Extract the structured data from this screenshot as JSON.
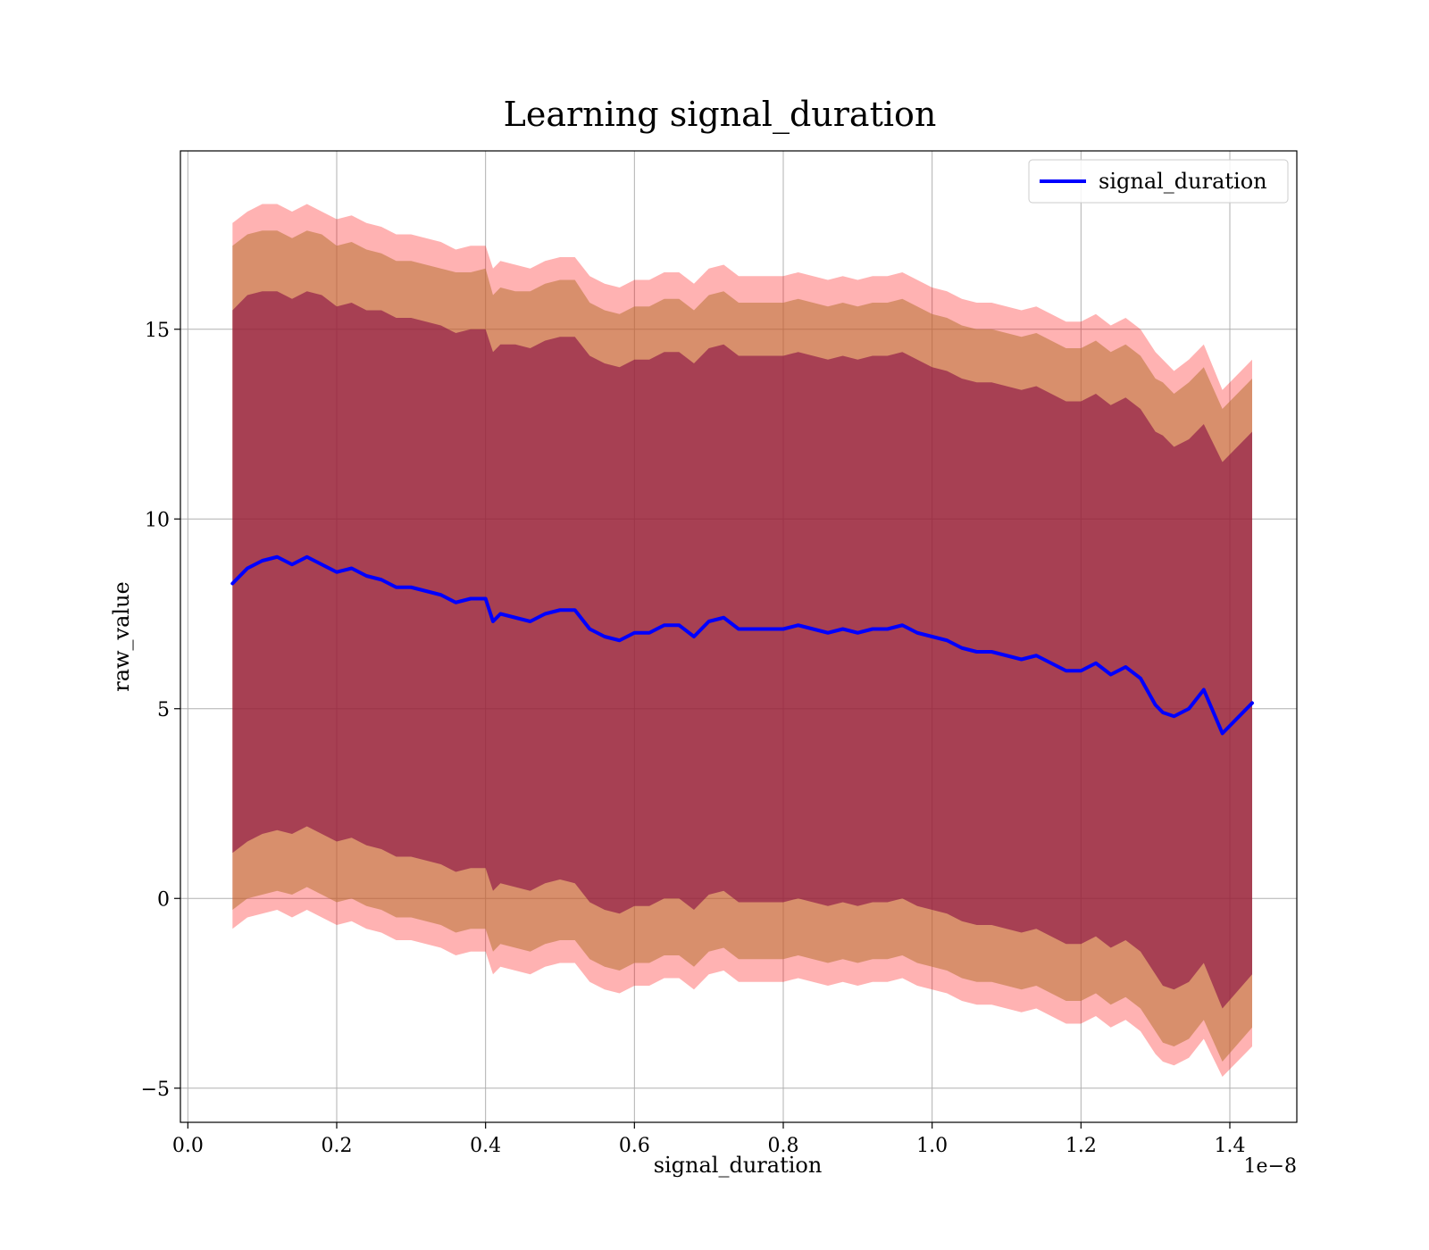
{
  "chart_data": {
    "type": "line",
    "title": "Learning signal_duration",
    "xlabel": "signal_duration",
    "ylabel": "raw_value",
    "x_offset_label": "1e−8",
    "xlim": [
      -0.01,
      1.49
    ],
    "ylim": [
      -5.9,
      19.7
    ],
    "x_ticks": [
      {
        "value": 0.0,
        "label": "0.0"
      },
      {
        "value": 0.2,
        "label": "0.2"
      },
      {
        "value": 0.4,
        "label": "0.4"
      },
      {
        "value": 0.6,
        "label": "0.6"
      },
      {
        "value": 0.8,
        "label": "0.8"
      },
      {
        "value": 1.0,
        "label": "1.0"
      },
      {
        "value": 1.2,
        "label": "1.2"
      },
      {
        "value": 1.4,
        "label": "1.4"
      }
    ],
    "y_ticks": [
      {
        "value": -5,
        "label": "−5"
      },
      {
        "value": 0,
        "label": "0"
      },
      {
        "value": 5,
        "label": "5"
      },
      {
        "value": 10,
        "label": "10"
      },
      {
        "value": 15,
        "label": "15"
      }
    ],
    "grid": true,
    "legend_position": "top-right",
    "colors": {
      "line": "#0000ff",
      "band_outer": "#ff0000",
      "band_mid": "#b87333",
      "band_inner": "#800040"
    },
    "series": [
      {
        "name": "signal_duration",
        "x": [
          0.06,
          0.08,
          0.1,
          0.12,
          0.14,
          0.16,
          0.18,
          0.2,
          0.22,
          0.24,
          0.26,
          0.28,
          0.3,
          0.32,
          0.34,
          0.36,
          0.38,
          0.4,
          0.41,
          0.42,
          0.44,
          0.46,
          0.48,
          0.5,
          0.52,
          0.54,
          0.56,
          0.58,
          0.6,
          0.62,
          0.64,
          0.66,
          0.68,
          0.7,
          0.72,
          0.74,
          0.76,
          0.78,
          0.8,
          0.82,
          0.84,
          0.86,
          0.88,
          0.9,
          0.92,
          0.94,
          0.96,
          0.98,
          1.0,
          1.02,
          1.04,
          1.06,
          1.08,
          1.1,
          1.12,
          1.14,
          1.16,
          1.18,
          1.2,
          1.22,
          1.24,
          1.26,
          1.28,
          1.3,
          1.31,
          1.325,
          1.345,
          1.365,
          1.39,
          1.43
        ],
        "y": [
          8.3,
          8.7,
          8.9,
          9.0,
          8.8,
          9.0,
          8.8,
          8.6,
          8.7,
          8.5,
          8.4,
          8.2,
          8.2,
          8.1,
          8.0,
          7.8,
          7.9,
          7.9,
          7.3,
          7.5,
          7.4,
          7.3,
          7.5,
          7.6,
          7.6,
          7.1,
          6.9,
          6.8,
          7.0,
          7.0,
          7.2,
          7.2,
          6.9,
          7.3,
          7.4,
          7.1,
          7.1,
          7.1,
          7.1,
          7.2,
          7.1,
          7.0,
          7.1,
          7.0,
          7.1,
          7.1,
          7.2,
          7.0,
          6.9,
          6.8,
          6.6,
          6.5,
          6.5,
          6.4,
          6.3,
          6.4,
          6.2,
          6.0,
          6.0,
          6.2,
          5.9,
          6.1,
          5.8,
          5.1,
          4.9,
          4.8,
          5.0,
          5.5,
          4.35,
          5.15
        ]
      }
    ],
    "bands": [
      {
        "sigma": 1,
        "upper": [
          15.5,
          15.9,
          16.0,
          16.0,
          15.8,
          16.0,
          15.9,
          15.6,
          15.7,
          15.5,
          15.5,
          15.3,
          15.3,
          15.2,
          15.1,
          14.9,
          15.0,
          15.0,
          14.4,
          14.6,
          14.6,
          14.5,
          14.7,
          14.8,
          14.8,
          14.3,
          14.1,
          14.0,
          14.2,
          14.2,
          14.4,
          14.4,
          14.1,
          14.5,
          14.6,
          14.3,
          14.3,
          14.3,
          14.3,
          14.4,
          14.3,
          14.2,
          14.3,
          14.2,
          14.3,
          14.3,
          14.4,
          14.2,
          14.0,
          13.9,
          13.7,
          13.6,
          13.6,
          13.5,
          13.4,
          13.5,
          13.3,
          13.1,
          13.1,
          13.3,
          13.0,
          13.2,
          12.9,
          12.3,
          12.2,
          11.9,
          12.1,
          12.5,
          11.5,
          12.3
        ],
        "lower": [
          1.2,
          1.5,
          1.7,
          1.8,
          1.7,
          1.9,
          1.7,
          1.5,
          1.6,
          1.4,
          1.3,
          1.1,
          1.1,
          1.0,
          0.9,
          0.7,
          0.8,
          0.8,
          0.2,
          0.4,
          0.3,
          0.2,
          0.4,
          0.5,
          0.4,
          -0.1,
          -0.3,
          -0.4,
          -0.2,
          -0.2,
          0.0,
          0.0,
          -0.3,
          0.1,
          0.2,
          -0.1,
          -0.1,
          -0.1,
          -0.1,
          0.0,
          -0.1,
          -0.2,
          -0.1,
          -0.2,
          -0.1,
          -0.1,
          0.0,
          -0.2,
          -0.3,
          -0.4,
          -0.6,
          -0.7,
          -0.7,
          -0.8,
          -0.9,
          -0.8,
          -1.0,
          -1.2,
          -1.2,
          -1.0,
          -1.3,
          -1.1,
          -1.4,
          -2.0,
          -2.3,
          -2.4,
          -2.2,
          -1.7,
          -2.9,
          -2.0
        ]
      },
      {
        "sigma": 2,
        "upper": [
          17.2,
          17.5,
          17.6,
          17.6,
          17.4,
          17.6,
          17.5,
          17.2,
          17.3,
          17.1,
          17.0,
          16.8,
          16.8,
          16.7,
          16.6,
          16.5,
          16.5,
          16.6,
          15.9,
          16.1,
          16.0,
          16.0,
          16.2,
          16.3,
          16.3,
          15.7,
          15.5,
          15.4,
          15.6,
          15.6,
          15.8,
          15.8,
          15.5,
          15.9,
          16.0,
          15.7,
          15.7,
          15.7,
          15.7,
          15.8,
          15.7,
          15.6,
          15.7,
          15.6,
          15.7,
          15.7,
          15.8,
          15.6,
          15.4,
          15.3,
          15.1,
          15.0,
          15.0,
          14.9,
          14.8,
          14.9,
          14.7,
          14.5,
          14.5,
          14.7,
          14.4,
          14.6,
          14.3,
          13.7,
          13.6,
          13.3,
          13.6,
          14.0,
          12.9,
          13.7
        ],
        "lower": [
          -0.3,
          0.0,
          0.1,
          0.2,
          0.1,
          0.3,
          0.1,
          -0.1,
          0.0,
          -0.2,
          -0.3,
          -0.5,
          -0.5,
          -0.6,
          -0.7,
          -0.9,
          -0.8,
          -0.8,
          -1.4,
          -1.2,
          -1.3,
          -1.4,
          -1.2,
          -1.1,
          -1.1,
          -1.6,
          -1.8,
          -1.9,
          -1.7,
          -1.7,
          -1.5,
          -1.5,
          -1.8,
          -1.4,
          -1.3,
          -1.6,
          -1.6,
          -1.6,
          -1.6,
          -1.5,
          -1.6,
          -1.7,
          -1.6,
          -1.7,
          -1.6,
          -1.6,
          -1.5,
          -1.7,
          -1.8,
          -1.9,
          -2.1,
          -2.2,
          -2.2,
          -2.3,
          -2.4,
          -2.3,
          -2.5,
          -2.7,
          -2.7,
          -2.5,
          -2.8,
          -2.6,
          -2.9,
          -3.5,
          -3.8,
          -3.9,
          -3.7,
          -3.2,
          -4.3,
          -3.4
        ]
      },
      {
        "sigma": 3,
        "upper": [
          17.8,
          18.1,
          18.3,
          18.3,
          18.1,
          18.3,
          18.1,
          17.9,
          18.0,
          17.8,
          17.7,
          17.5,
          17.5,
          17.4,
          17.3,
          17.1,
          17.2,
          17.2,
          16.6,
          16.8,
          16.7,
          16.6,
          16.8,
          16.9,
          16.9,
          16.4,
          16.2,
          16.1,
          16.3,
          16.3,
          16.5,
          16.5,
          16.2,
          16.6,
          16.7,
          16.4,
          16.4,
          16.4,
          16.4,
          16.5,
          16.4,
          16.3,
          16.4,
          16.3,
          16.4,
          16.4,
          16.5,
          16.3,
          16.1,
          16.0,
          15.8,
          15.7,
          15.7,
          15.6,
          15.5,
          15.6,
          15.4,
          15.2,
          15.2,
          15.4,
          15.1,
          15.3,
          15.0,
          14.4,
          14.2,
          13.9,
          14.2,
          14.6,
          13.4,
          14.2
        ],
        "lower": [
          -0.8,
          -0.5,
          -0.4,
          -0.3,
          -0.5,
          -0.3,
          -0.5,
          -0.7,
          -0.6,
          -0.8,
          -0.9,
          -1.1,
          -1.1,
          -1.2,
          -1.3,
          -1.5,
          -1.4,
          -1.4,
          -2.0,
          -1.8,
          -1.9,
          -2.0,
          -1.8,
          -1.7,
          -1.7,
          -2.2,
          -2.4,
          -2.5,
          -2.3,
          -2.3,
          -2.1,
          -2.1,
          -2.4,
          -2.0,
          -1.9,
          -2.2,
          -2.2,
          -2.2,
          -2.2,
          -2.1,
          -2.2,
          -2.3,
          -2.2,
          -2.3,
          -2.2,
          -2.2,
          -2.1,
          -2.3,
          -2.4,
          -2.5,
          -2.7,
          -2.8,
          -2.8,
          -2.9,
          -3.0,
          -2.9,
          -3.1,
          -3.3,
          -3.3,
          -3.1,
          -3.4,
          -3.2,
          -3.5,
          -4.1,
          -4.3,
          -4.4,
          -4.2,
          -3.7,
          -4.7,
          -3.9
        ]
      }
    ]
  }
}
